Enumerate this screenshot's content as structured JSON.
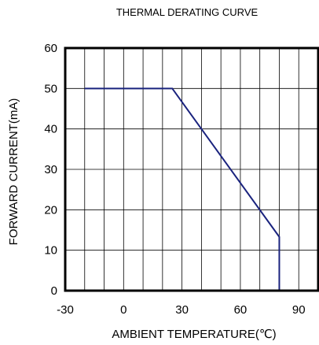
{
  "chart_data": {
    "type": "line",
    "title": "THERMAL DERATING CURVE",
    "xlabel": "AMBIENT TEMPERATURE(℃)",
    "ylabel": "FORWARD CURRENT(mA)",
    "xlim": [
      -30,
      100
    ],
    "ylim": [
      0,
      60
    ],
    "x_ticks": [
      -30,
      0,
      30,
      60,
      90
    ],
    "y_ticks": [
      0,
      10,
      20,
      30,
      40,
      50,
      60
    ],
    "x_minor_step": 10,
    "grid": true,
    "line_color": "#1a237e",
    "series": [
      {
        "x": [
          -20,
          25,
          80,
          80,
          100
        ],
        "y": [
          50,
          50,
          13.3,
          0,
          0
        ]
      }
    ]
  }
}
